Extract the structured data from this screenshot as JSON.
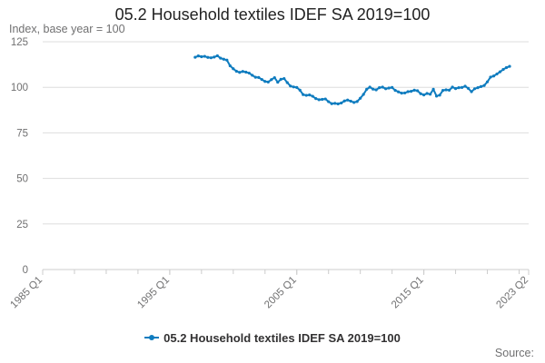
{
  "title": "05.2 Household textiles IDEF SA 2019=100",
  "unit_label": "Index, base year = 100",
  "source_label": "Source:",
  "colors": {
    "series": "#0f7cbf",
    "grid": "#dddddd",
    "axis": "#cccccc",
    "tick_text": "#707071"
  },
  "chart_data": {
    "type": "line",
    "title": "05.2 Household textiles IDEF SA 2019=100",
    "ylabel": "Index, base year = 100",
    "xlabel": "",
    "xlim": [
      "1985 Q1",
      "2023 Q2"
    ],
    "ylim": [
      0,
      125
    ],
    "y_ticks": [
      0,
      25,
      50,
      75,
      100,
      125
    ],
    "x_tick_labels": [
      "1985 Q1",
      "1995 Q1",
      "2005 Q1",
      "2015 Q1",
      "2023 Q2"
    ],
    "grid": true,
    "legend_position": "bottom",
    "series": [
      {
        "name": "05.2 Household textiles IDEF SA 2019=100",
        "points": [
          [
            "1997-01",
            116.5
          ],
          [
            "1997-04",
            117.2
          ],
          [
            "1997-07",
            116.8
          ],
          [
            "1997-10",
            117.0
          ],
          [
            "1998-01",
            116.4
          ],
          [
            "1998-04",
            116.2
          ],
          [
            "1998-07",
            116.6
          ],
          [
            "1998-10",
            117.3
          ],
          [
            "1999-01",
            116.0
          ],
          [
            "1999-04",
            115.4
          ],
          [
            "1999-07",
            114.9
          ],
          [
            "1999-10",
            111.8
          ],
          [
            "2000-01",
            110.2
          ],
          [
            "2000-04",
            108.8
          ],
          [
            "2000-07",
            108.2
          ],
          [
            "2000-10",
            108.7
          ],
          [
            "2001-01",
            108.3
          ],
          [
            "2001-04",
            107.8
          ],
          [
            "2001-07",
            106.6
          ],
          [
            "2001-10",
            105.5
          ],
          [
            "2002-01",
            105.4
          ],
          [
            "2002-04",
            104.3
          ],
          [
            "2002-07",
            103.2
          ],
          [
            "2002-10",
            102.9
          ],
          [
            "2003-01",
            104.2
          ],
          [
            "2003-04",
            105.3
          ],
          [
            "2003-07",
            102.8
          ],
          [
            "2003-10",
            104.4
          ],
          [
            "2004-01",
            104.8
          ],
          [
            "2004-04",
            102.6
          ],
          [
            "2004-07",
            100.7
          ],
          [
            "2004-10",
            100.2
          ],
          [
            "2005-01",
            99.9
          ],
          [
            "2005-04",
            98.4
          ],
          [
            "2005-07",
            96.0
          ],
          [
            "2005-10",
            95.6
          ],
          [
            "2006-01",
            95.8
          ],
          [
            "2006-04",
            95.1
          ],
          [
            "2006-07",
            93.8
          ],
          [
            "2006-10",
            93.2
          ],
          [
            "2007-01",
            93.4
          ],
          [
            "2007-04",
            93.6
          ],
          [
            "2007-07",
            92.1
          ],
          [
            "2007-10",
            91.0
          ],
          [
            "2008-01",
            91.2
          ],
          [
            "2008-04",
            90.9
          ],
          [
            "2008-07",
            91.4
          ],
          [
            "2008-10",
            92.5
          ],
          [
            "2009-01",
            93.0
          ],
          [
            "2009-04",
            92.4
          ],
          [
            "2009-07",
            91.7
          ],
          [
            "2009-10",
            92.2
          ],
          [
            "2010-01",
            94.0
          ],
          [
            "2010-04",
            96.1
          ],
          [
            "2010-07",
            98.9
          ],
          [
            "2010-10",
            100.1
          ],
          [
            "2011-01",
            99.0
          ],
          [
            "2011-04",
            98.6
          ],
          [
            "2011-07",
            99.8
          ],
          [
            "2011-10",
            100.1
          ],
          [
            "2012-01",
            99.2
          ],
          [
            "2012-04",
            99.6
          ],
          [
            "2012-07",
            99.9
          ],
          [
            "2012-10",
            98.3
          ],
          [
            "2013-01",
            97.5
          ],
          [
            "2013-04",
            96.8
          ],
          [
            "2013-07",
            96.9
          ],
          [
            "2013-10",
            97.6
          ],
          [
            "2014-01",
            97.8
          ],
          [
            "2014-04",
            98.4
          ],
          [
            "2014-07",
            98.1
          ],
          [
            "2014-10",
            96.5
          ],
          [
            "2015-01",
            95.8
          ],
          [
            "2015-04",
            96.6
          ],
          [
            "2015-07",
            96.2
          ],
          [
            "2015-10",
            98.9
          ],
          [
            "2016-01",
            95.2
          ],
          [
            "2016-04",
            95.7
          ],
          [
            "2016-07",
            98.3
          ],
          [
            "2016-10",
            98.6
          ],
          [
            "2017-01",
            98.4
          ],
          [
            "2017-04",
            100.1
          ],
          [
            "2017-07",
            99.3
          ],
          [
            "2017-10",
            99.8
          ],
          [
            "2018-01",
            99.9
          ],
          [
            "2018-04",
            100.6
          ],
          [
            "2018-07",
            99.4
          ],
          [
            "2018-10",
            97.6
          ],
          [
            "2019-01",
            99.2
          ],
          [
            "2019-04",
            99.8
          ],
          [
            "2019-07",
            100.4
          ],
          [
            "2019-10",
            101.0
          ],
          [
            "2020-01",
            103.0
          ],
          [
            "2020-04",
            105.6
          ],
          [
            "2020-07",
            106.2
          ],
          [
            "2020-10",
            107.3
          ],
          [
            "2021-01",
            108.5
          ],
          [
            "2021-04",
            109.8
          ],
          [
            "2021-07",
            110.8
          ],
          [
            "2021-10",
            111.5
          ]
        ]
      }
    ]
  }
}
